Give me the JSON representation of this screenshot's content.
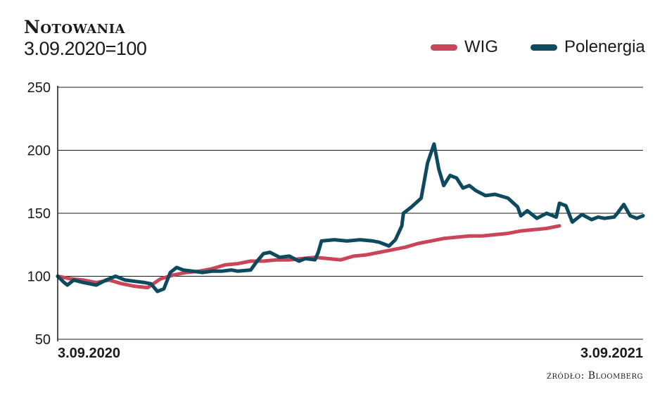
{
  "chart_data": {
    "type": "line",
    "title": "Notowania",
    "subtitle": "3.09.2020=100",
    "source": "źródło: Bloomberg",
    "x_labels": [
      "3.09.2020",
      "3.09.2021"
    ],
    "ylim": [
      50,
      250
    ],
    "yticks": [
      50,
      100,
      150,
      200,
      250
    ],
    "grid": true,
    "legend_position": "top-right",
    "x_units": "months since 3.09.2020",
    "series": [
      {
        "name": "WIG",
        "color": "#c8455a",
        "points": [
          [
            0,
            100
          ],
          [
            0.4,
            98
          ],
          [
            0.8,
            97
          ],
          [
            1.2,
            95
          ],
          [
            1.6,
            97
          ],
          [
            2.0,
            94
          ],
          [
            2.4,
            92
          ],
          [
            2.8,
            91
          ],
          [
            3.2,
            98
          ],
          [
            3.6,
            101
          ],
          [
            4.0,
            103
          ],
          [
            4.4,
            104
          ],
          [
            4.8,
            106
          ],
          [
            5.2,
            109
          ],
          [
            5.6,
            110
          ],
          [
            6.0,
            112
          ],
          [
            6.4,
            112
          ],
          [
            6.8,
            113
          ],
          [
            7.2,
            113
          ],
          [
            7.6,
            114
          ],
          [
            8.0,
            115
          ],
          [
            8.4,
            114
          ],
          [
            8.8,
            113
          ],
          [
            9.2,
            116
          ],
          [
            9.6,
            117
          ],
          [
            10.0,
            119
          ],
          [
            10.4,
            121
          ],
          [
            10.8,
            123
          ],
          [
            11.2,
            126
          ],
          [
            11.6,
            128
          ],
          [
            12.0,
            130
          ],
          [
            12.4,
            131
          ],
          [
            12.8,
            132
          ],
          [
            13.2,
            132
          ],
          [
            13.6,
            133
          ],
          [
            14.0,
            134
          ],
          [
            14.4,
            136
          ],
          [
            14.8,
            137
          ],
          [
            15.2,
            138
          ],
          [
            15.4,
            139
          ],
          [
            15.6,
            140
          ]
        ]
      },
      {
        "name": "Polenergia",
        "color": "#0d4a5e",
        "points": [
          [
            0,
            100
          ],
          [
            0.2,
            95
          ],
          [
            0.3,
            93
          ],
          [
            0.5,
            97
          ],
          [
            0.8,
            95
          ],
          [
            1.2,
            93
          ],
          [
            1.5,
            97
          ],
          [
            1.8,
            100
          ],
          [
            2.1,
            97
          ],
          [
            2.4,
            96
          ],
          [
            2.7,
            95
          ],
          [
            2.9,
            94
          ],
          [
            3.1,
            88
          ],
          [
            3.3,
            90
          ],
          [
            3.5,
            103
          ],
          [
            3.7,
            107
          ],
          [
            3.9,
            105
          ],
          [
            4.2,
            104
          ],
          [
            4.5,
            103
          ],
          [
            4.8,
            104
          ],
          [
            5.1,
            104
          ],
          [
            5.4,
            105
          ],
          [
            5.6,
            104
          ],
          [
            6.0,
            105
          ],
          [
            6.2,
            112
          ],
          [
            6.4,
            118
          ],
          [
            6.6,
            119
          ],
          [
            6.9,
            115
          ],
          [
            7.2,
            116
          ],
          [
            7.5,
            112
          ],
          [
            7.7,
            114
          ],
          [
            8.0,
            113
          ],
          [
            8.1,
            119
          ],
          [
            8.2,
            128
          ],
          [
            8.6,
            129
          ],
          [
            9.0,
            128
          ],
          [
            9.4,
            129
          ],
          [
            9.8,
            128
          ],
          [
            10.0,
            127
          ],
          [
            10.3,
            124
          ],
          [
            10.5,
            129
          ],
          [
            10.7,
            140
          ],
          [
            10.75,
            150
          ],
          [
            11.0,
            155
          ],
          [
            11.3,
            162
          ],
          [
            11.5,
            190
          ],
          [
            11.7,
            205
          ],
          [
            11.85,
            185
          ],
          [
            12.0,
            172
          ],
          [
            12.2,
            180
          ],
          [
            12.4,
            178
          ],
          [
            12.6,
            170
          ],
          [
            12.8,
            172
          ],
          [
            13.0,
            168
          ],
          [
            13.3,
            164
          ],
          [
            13.6,
            165
          ],
          [
            14.0,
            162
          ],
          [
            14.3,
            155
          ],
          [
            14.4,
            148
          ],
          [
            14.6,
            152
          ],
          [
            14.9,
            146
          ],
          [
            15.2,
            150
          ],
          [
            15.5,
            147
          ],
          [
            15.6,
            158
          ],
          [
            15.8,
            156
          ],
          [
            16.0,
            143
          ],
          [
            16.3,
            149
          ],
          [
            16.6,
            145
          ],
          [
            16.8,
            147
          ],
          [
            17.0,
            146
          ],
          [
            17.3,
            147
          ],
          [
            17.4,
            150
          ],
          [
            17.6,
            157
          ],
          [
            17.8,
            148
          ],
          [
            18.0,
            146
          ],
          [
            18.2,
            148
          ]
        ]
      }
    ]
  }
}
